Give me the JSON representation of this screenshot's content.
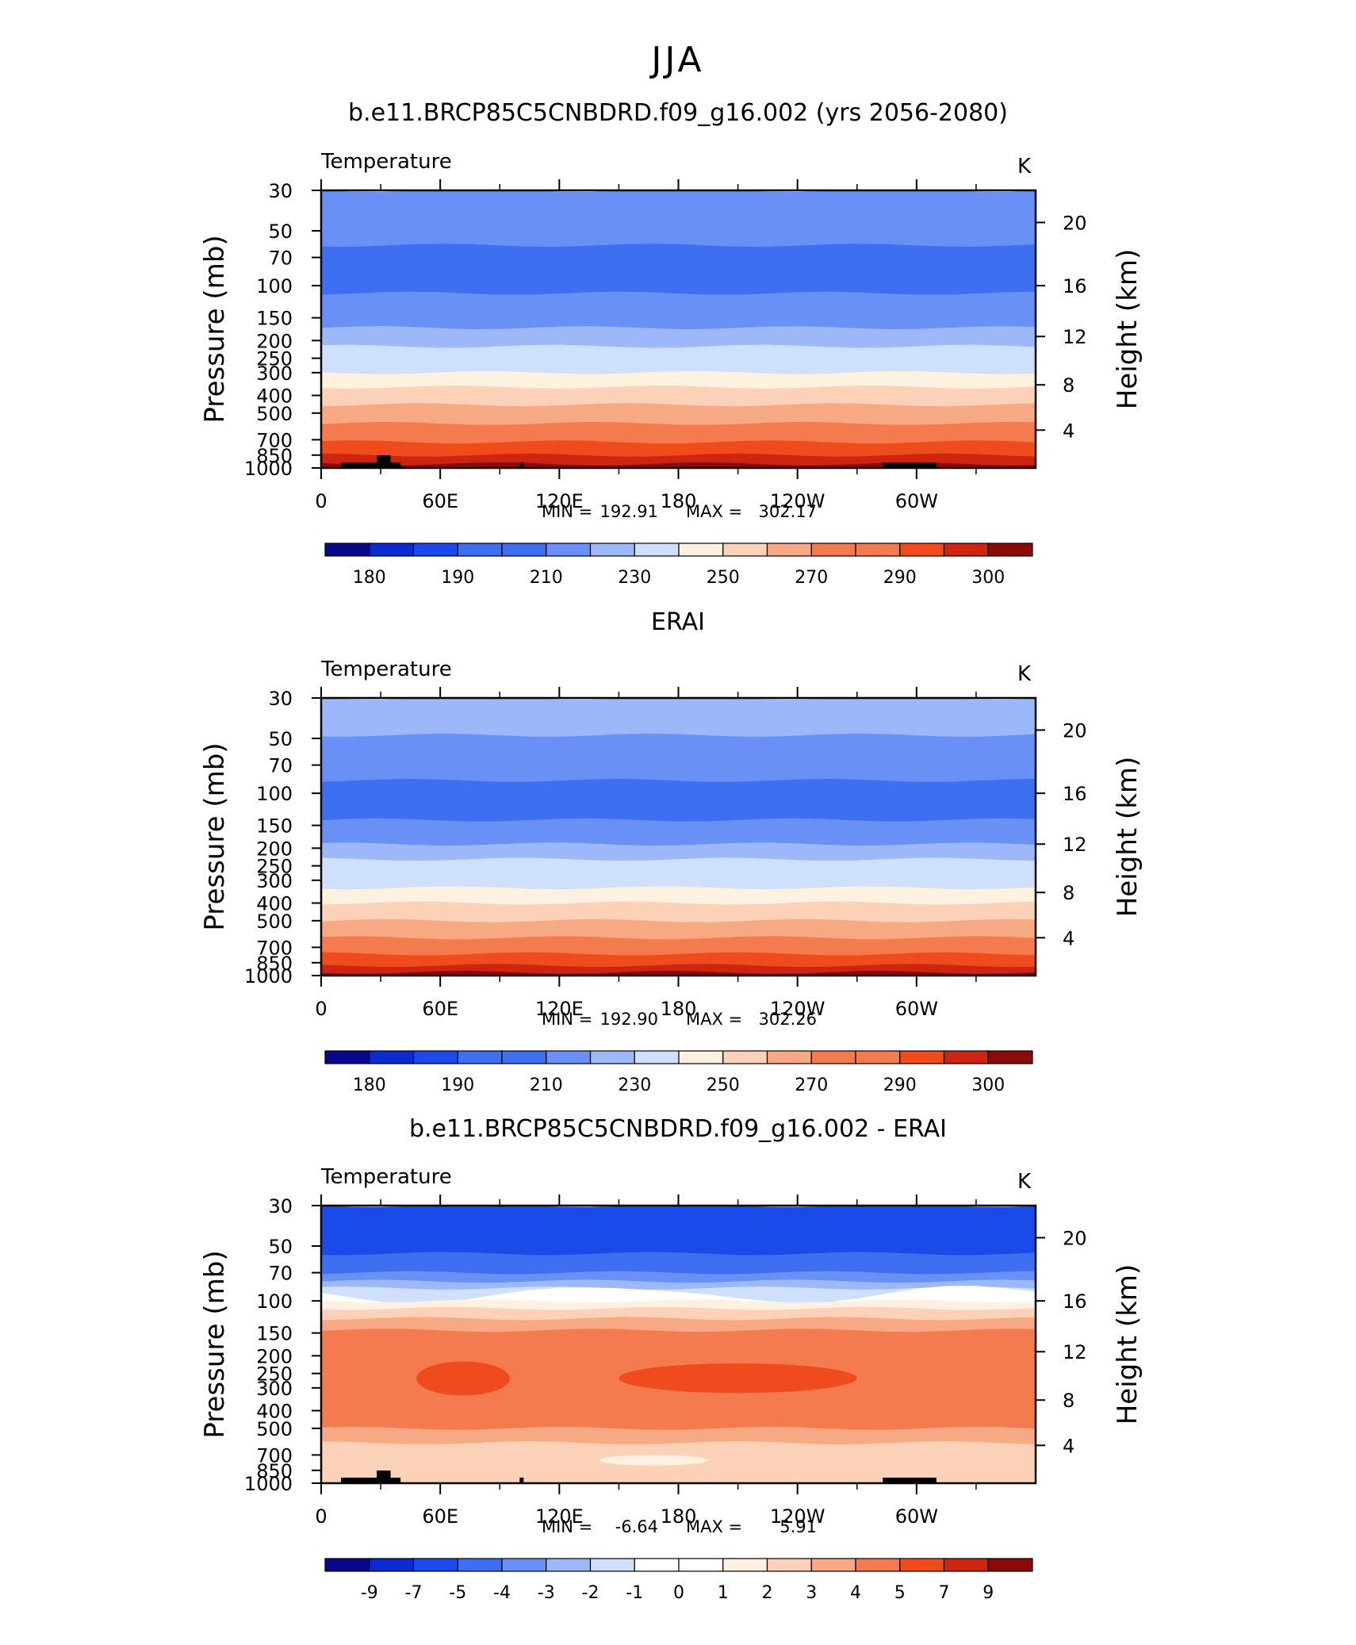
{
  "page_title": "JJA",
  "colors": {
    "temperature_palette": [
      "#08088a",
      "#0a2bd0",
      "#1a4be8",
      "#3e6ff0",
      "#6990f5",
      "#9db8f9",
      "#cfe0fc",
      "#fff1e0",
      "#fbd1b8",
      "#f7a983",
      "#f47a4f",
      "#ef4b1c",
      "#cc2612",
      "#8b0a0a"
    ],
    "difference_palette": [
      "#08088a",
      "#0a2bd0",
      "#1a4be8",
      "#3e6ff0",
      "#6990f5",
      "#9db8f9",
      "#cfe0fc",
      "#ffffff",
      "#fff1e0",
      "#fbd1b8",
      "#f7a983",
      "#f47a4f",
      "#ef4b1c",
      "#cc2612",
      "#8b0a0a"
    ],
    "topography": "#000000"
  },
  "chart_data": [
    {
      "type": "heatmap",
      "title": "b.e11.BRCP85C5CNBDRD.f09_g16.002 (yrs 2056-2080)",
      "left_label": "Temperature",
      "right_label": "K",
      "xlabel": "",
      "ylabel": "Pressure  (mb)",
      "ylabel_right": "Height  (km)",
      "x_ticks": [
        "0",
        "60E",
        "120E",
        "180",
        "120W",
        "60W"
      ],
      "y_ticks": [
        "30",
        "50",
        "70",
        "100",
        "150",
        "200",
        "250",
        "300",
        "400",
        "500",
        "700",
        "850",
        "1000"
      ],
      "y_right_ticks": [
        "20",
        "16",
        "12",
        "8",
        "4"
      ],
      "ylim": [
        1000,
        30
      ],
      "y_scale": "log",
      "stats": {
        "min_label": "MIN =",
        "min": "192.91",
        "max_label": "MAX =",
        "max": "302.17"
      },
      "colorbar_labels": [
        "180",
        "190",
        "210",
        "230",
        "250",
        "270",
        "290",
        "300"
      ],
      "layers": [
        {
          "bottom": 60,
          "top": 30,
          "value": 212
        },
        {
          "bottom": 110,
          "top": 60,
          "value": 204
        },
        {
          "bottom": 170,
          "top": 110,
          "value": 213
        },
        {
          "bottom": 215,
          "top": 170,
          "value": 221
        },
        {
          "bottom": 260,
          "top": 215,
          "value": 231
        },
        {
          "bottom": 300,
          "top": 260,
          "value": 238
        },
        {
          "bottom": 360,
          "top": 300,
          "value": 247
        },
        {
          "bottom": 450,
          "top": 360,
          "value": 256
        },
        {
          "bottom": 570,
          "top": 450,
          "value": 264
        },
        {
          "bottom": 720,
          "top": 570,
          "value": 274
        },
        {
          "bottom": 850,
          "top": 720,
          "value": 283
        },
        {
          "bottom": 950,
          "top": 850,
          "value": 291
        },
        {
          "bottom": 1000,
          "top": 950,
          "value": 297
        }
      ]
    },
    {
      "type": "heatmap",
      "title": "ERAI",
      "left_label": "Temperature",
      "right_label": "K",
      "xlabel": "",
      "ylabel": "Pressure  (mb)",
      "ylabel_right": "Height  (km)",
      "x_ticks": [
        "0",
        "60E",
        "120E",
        "180",
        "120W",
        "60W"
      ],
      "y_ticks": [
        "30",
        "50",
        "70",
        "100",
        "150",
        "200",
        "250",
        "300",
        "400",
        "500",
        "700",
        "850",
        "1000"
      ],
      "y_right_ticks": [
        "20",
        "16",
        "12",
        "8",
        "4"
      ],
      "ylim": [
        1000,
        30
      ],
      "y_scale": "log",
      "stats": {
        "min_label": "MIN =",
        "min": "192.90",
        "max_label": "MAX =",
        "max": "302.26"
      },
      "colorbar_labels": [
        "180",
        "190",
        "210",
        "230",
        "250",
        "270",
        "290",
        "300"
      ],
      "layers": [
        {
          "bottom": 48,
          "top": 30,
          "value": 222
        },
        {
          "bottom": 85,
          "top": 48,
          "value": 212
        },
        {
          "bottom": 140,
          "top": 85,
          "value": 204
        },
        {
          "bottom": 190,
          "top": 140,
          "value": 213
        },
        {
          "bottom": 230,
          "top": 190,
          "value": 221
        },
        {
          "bottom": 280,
          "top": 230,
          "value": 231
        },
        {
          "bottom": 330,
          "top": 280,
          "value": 239
        },
        {
          "bottom": 400,
          "top": 330,
          "value": 247
        },
        {
          "bottom": 500,
          "top": 400,
          "value": 256
        },
        {
          "bottom": 620,
          "top": 500,
          "value": 264
        },
        {
          "bottom": 760,
          "top": 620,
          "value": 274
        },
        {
          "bottom": 880,
          "top": 760,
          "value": 283
        },
        {
          "bottom": 960,
          "top": 880,
          "value": 291
        },
        {
          "bottom": 1000,
          "top": 960,
          "value": 297
        }
      ]
    },
    {
      "type": "heatmap",
      "title": "b.e11.BRCP85C5CNBDRD.f09_g16.002 - ERAI",
      "left_label": "Temperature",
      "right_label": "K",
      "xlabel": "",
      "ylabel": "Pressure  (mb)",
      "ylabel_right": "Height  (km)",
      "x_ticks": [
        "0",
        "60E",
        "120E",
        "180",
        "120W",
        "60W"
      ],
      "y_ticks": [
        "30",
        "50",
        "70",
        "100",
        "150",
        "200",
        "250",
        "300",
        "400",
        "500",
        "700",
        "850",
        "1000"
      ],
      "y_right_ticks": [
        "20",
        "16",
        "12",
        "8",
        "4"
      ],
      "ylim": [
        1000,
        30
      ],
      "y_scale": "log",
      "stats": {
        "min_label": "MIN =",
        "min": "-6.64",
        "max_label": "MAX =",
        "max": "5.91"
      },
      "colorbar_labels": [
        "-9",
        "-7",
        "-5",
        "-4",
        "-3",
        "-2",
        "-1",
        "0",
        "1",
        "2",
        "3",
        "4",
        "5",
        "7",
        "9"
      ],
      "layers": [
        {
          "bottom": 55,
          "top": 30,
          "value": -6.0
        },
        {
          "bottom": 70,
          "top": 55,
          "value": -4.5
        },
        {
          "bottom": 78,
          "top": 70,
          "value": -3.5
        },
        {
          "bottom": 85,
          "top": 78,
          "value": -2.5
        },
        {
          "bottom": 92,
          "top": 85,
          "value": -1.5
        },
        {
          "bottom": 100,
          "top": 92,
          "value": -0.5
        },
        {
          "bottom": 110,
          "top": 100,
          "value": 0.5
        },
        {
          "bottom": 125,
          "top": 110,
          "value": 1.5
        },
        {
          "bottom": 145,
          "top": 125,
          "value": 2.5
        },
        {
          "bottom": 500,
          "top": 145,
          "value": 3.5
        },
        {
          "bottom": 600,
          "top": 500,
          "value": 2.5
        },
        {
          "bottom": 1000,
          "top": 600,
          "value": 1.5
        }
      ],
      "patches": [
        {
          "lon": [
            48,
            95
          ],
          "p": [
            215,
            330
          ],
          "value": 4.5
        },
        {
          "lon": [
            150,
            270
          ],
          "p": [
            220,
            320
          ],
          "value": 4.5
        },
        {
          "lon": [
            140,
            195
          ],
          "p": [
            700,
            800
          ],
          "value": 0.5
        }
      ]
    }
  ]
}
